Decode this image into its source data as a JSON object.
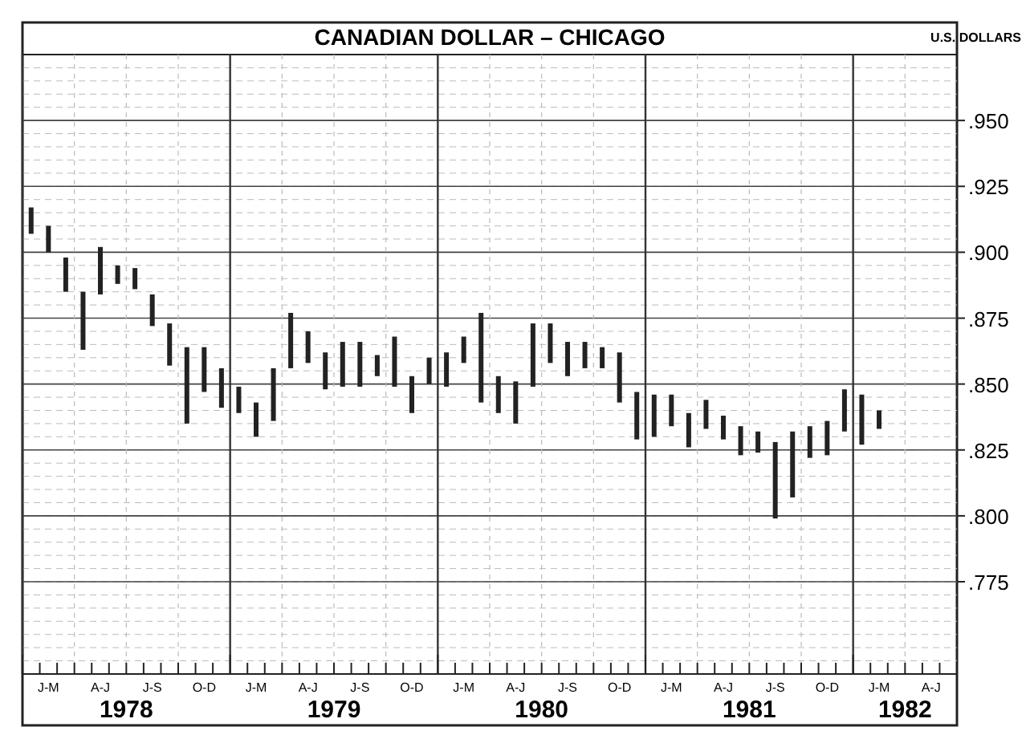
{
  "chart_data": {
    "type": "bar",
    "title": "CANADIAN DOLLAR – CHICAGO",
    "ylabel": "U.S. DOLLARS",
    "categories": [
      null,
      "J-M",
      null,
      null,
      "A-J",
      null,
      null,
      "J-S",
      null,
      null,
      "O-D",
      null,
      null,
      "J-M",
      null,
      null,
      "A-J",
      null,
      null,
      "J-S",
      null,
      null,
      "O-D",
      null,
      null,
      "J-M",
      null,
      null,
      "A-J",
      null,
      null,
      "J-S",
      null,
      null,
      "O-D",
      null,
      null,
      "J-M",
      null,
      null,
      "A-J",
      null,
      null,
      "J-S",
      null,
      null,
      "O-D",
      null,
      null,
      "J-M",
      null,
      null,
      "A-J",
      null
    ],
    "base": [
      0.907,
      0.9,
      0.885,
      0.863,
      0.884,
      0.888,
      0.886,
      0.872,
      0.857,
      0.835,
      0.847,
      0.841,
      0.839,
      0.83,
      0.836,
      0.856,
      0.858,
      0.848,
      0.849,
      0.849,
      0.853,
      0.849,
      0.839,
      0.85,
      0.849,
      0.858,
      0.843,
      0.839,
      0.835,
      0.849,
      0.858,
      0.853,
      0.856,
      0.856,
      0.843,
      0.829,
      0.83,
      0.834,
      0.826,
      0.833,
      0.829,
      0.823,
      0.824,
      0.799,
      0.807,
      0.822,
      0.823,
      0.832,
      0.827,
      0.833,
      null,
      null,
      null,
      null
    ],
    "values": [
      0.01,
      0.01,
      0.013,
      0.022,
      0.018,
      0.007,
      0.008,
      0.012,
      0.016,
      0.029,
      0.017,
      0.015,
      0.01,
      0.013,
      0.02,
      0.021,
      0.012,
      0.014,
      0.017,
      0.017,
      0.008,
      0.019,
      0.014,
      0.01,
      0.013,
      0.01,
      0.034,
      0.014,
      0.016,
      0.024,
      0.015,
      0.013,
      0.01,
      0.008,
      0.019,
      0.018,
      0.016,
      0.012,
      0.013,
      0.011,
      0.009,
      0.011,
      0.008,
      0.029,
      0.025,
      0.012,
      0.013,
      0.016,
      0.019,
      0.007,
      null,
      null,
      null,
      null
    ],
    "color": "#222222",
    "ylim": [
      0.74,
      0.975
    ],
    "yticks": [
      {
        "value": 0.775,
        "label": ".775"
      },
      {
        "value": 0.8,
        "label": ".800"
      },
      {
        "value": 0.825,
        "label": ".825"
      },
      {
        "value": 0.85,
        "label": ".850"
      },
      {
        "value": 0.875,
        "label": ".875"
      },
      {
        "value": 0.9,
        "label": ".900"
      },
      {
        "value": 0.925,
        "label": ".925"
      },
      {
        "value": 0.95,
        "label": ".950"
      }
    ],
    "grid": true,
    "annotations": [
      "1978",
      "1979",
      "1980",
      "1981",
      "1982"
    ]
  }
}
